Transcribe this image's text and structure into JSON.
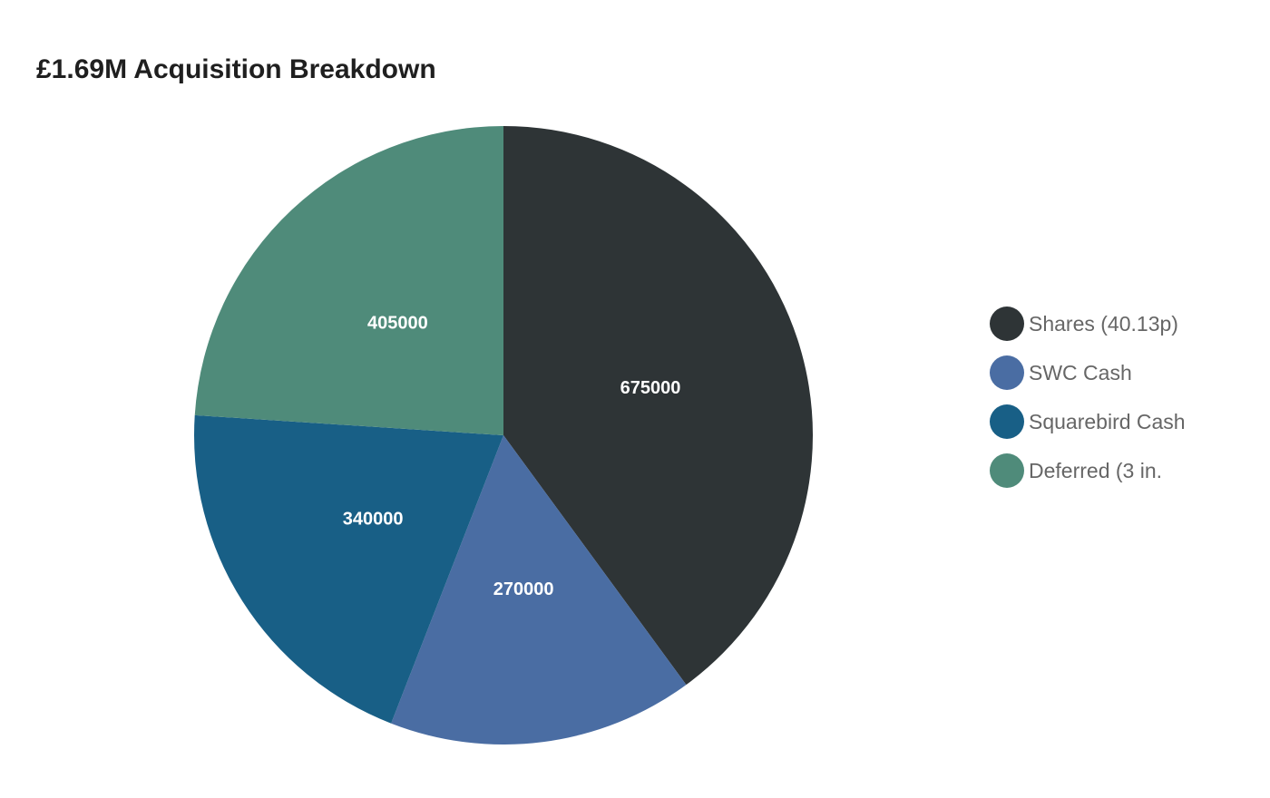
{
  "title": "£1.69M Acquisition Breakdown",
  "chart_data": {
    "type": "pie",
    "title": "£1.69M Acquisition Breakdown",
    "categories": [
      "Shares (40.13p)",
      "SWC Cash",
      "Squarebird Cash",
      "Deferred (3 in."
    ],
    "values": [
      675000,
      270000,
      340000,
      405000
    ],
    "colors": [
      "#2e3436",
      "#4a6da3",
      "#185f86",
      "#4f8b7a"
    ],
    "value_labels": [
      "675000",
      "270000",
      "340000",
      "405000"
    ],
    "legend_position": "right",
    "start_angle": "12 o'clock",
    "direction": "clockwise"
  },
  "legend": {
    "items": [
      {
        "label": "Shares (40.13p)",
        "color": "#2e3436"
      },
      {
        "label": "SWC Cash",
        "color": "#4a6da3"
      },
      {
        "label": "Squarebird Cash",
        "color": "#185f86"
      },
      {
        "label": "Deferred (3 in.",
        "color": "#4f8b7a"
      }
    ]
  }
}
